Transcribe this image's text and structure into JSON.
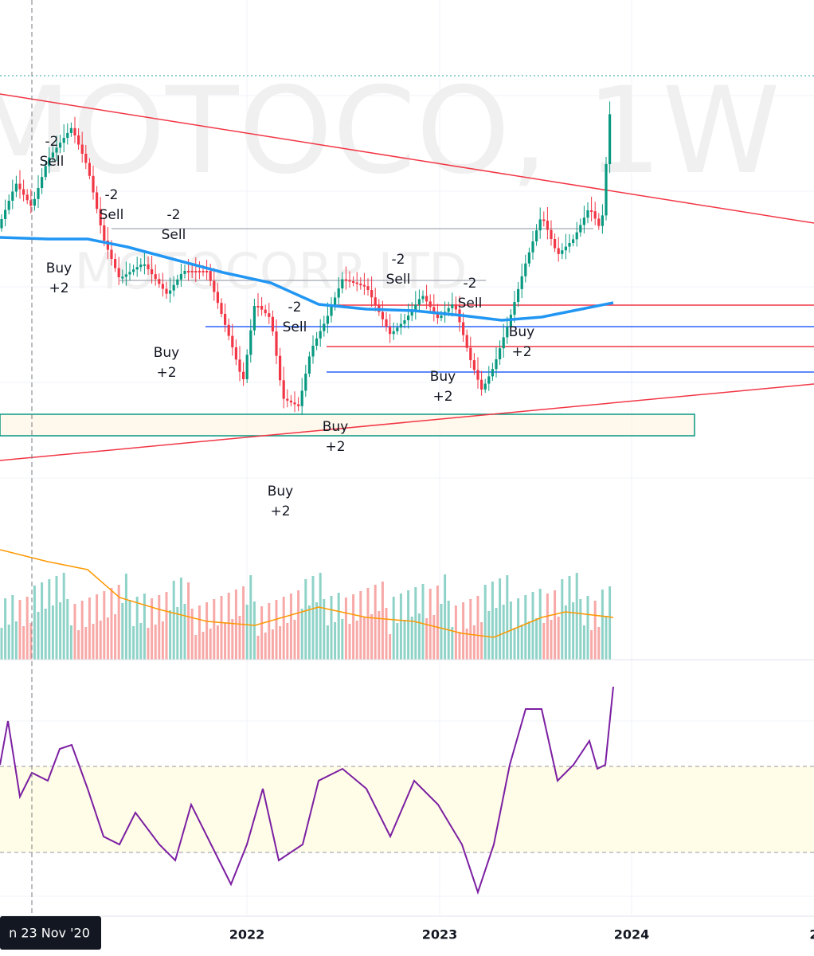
{
  "watermark": {
    "symbol": "MOTOCO, 1W",
    "company": "MOTOCORP LTD"
  },
  "signals": [
    {
      "qty": "-2",
      "label": "Sell"
    },
    {
      "qty": "-2",
      "label": "Sell"
    },
    {
      "qty": "-2",
      "label": "Sell"
    },
    {
      "qty": "-2",
      "label": "Sell"
    },
    {
      "qty": "-2",
      "label": "Sell"
    },
    {
      "qty": "-2",
      "label": "Sell"
    },
    {
      "label": "Buy",
      "qty": "+2"
    },
    {
      "label": "Buy",
      "qty": "+2"
    },
    {
      "label": "Buy",
      "qty": "+2"
    },
    {
      "label": "Buy",
      "qty": "+2"
    },
    {
      "label": "Buy",
      "qty": "+2"
    },
    {
      "label": "Buy",
      "qty": "+2"
    }
  ],
  "x_axis": {
    "labels": [
      "2022",
      "2023",
      "2024",
      "2"
    ],
    "crosshair": "n 23 Nov '20"
  }
}
